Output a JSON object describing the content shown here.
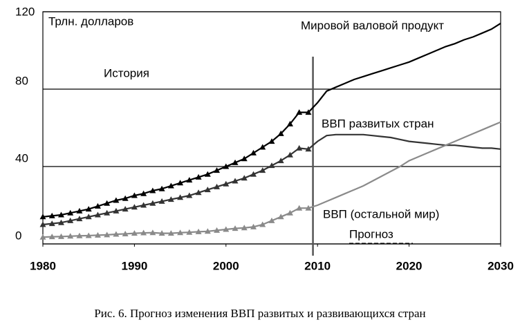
{
  "chart_data": {
    "type": "line",
    "y_label": "Трлн. долларов",
    "caption": "Рис. 6. Прогноз изменения ВВП развитых и развивающихся стран",
    "annotations": {
      "history": "История",
      "forecast": "Прогноз"
    },
    "x": [
      1980,
      1981,
      1982,
      1983,
      1984,
      1985,
      1986,
      1987,
      1988,
      1989,
      1990,
      1991,
      1992,
      1993,
      1994,
      1995,
      1996,
      1997,
      1998,
      1999,
      2000,
      2001,
      2002,
      2003,
      2004,
      2005,
      2006,
      2007,
      2008,
      2009,
      2010,
      2011,
      2012,
      2013,
      2014,
      2015,
      2016,
      2017,
      2018,
      2019,
      2020,
      2021,
      2022,
      2023,
      2024,
      2025,
      2026,
      2027,
      2028,
      2029,
      2030
    ],
    "series": [
      {
        "name": "Мировой валовой продукт",
        "color": "#000000",
        "values": [
          14,
          14.5,
          15,
          16,
          17,
          18,
          19.5,
          21,
          22.5,
          23.5,
          25,
          26,
          27.5,
          28.5,
          30,
          31.5,
          33,
          34.5,
          36,
          38,
          40,
          42,
          44,
          47,
          50,
          53,
          57,
          62,
          68,
          68,
          73,
          79,
          81,
          83,
          85,
          86.5,
          88,
          89.5,
          91,
          92.5,
          94,
          96,
          98,
          100,
          102,
          103.5,
          105.5,
          107,
          109,
          111,
          114
        ]
      },
      {
        "name": "ВВП развитых стран",
        "color": "#333333",
        "values": [
          10,
          10.5,
          11,
          12,
          13,
          14,
          15,
          16,
          17,
          18,
          19,
          20,
          21,
          22,
          23,
          24,
          25,
          26.5,
          28,
          29.5,
          31,
          32.5,
          34,
          36,
          38,
          40.5,
          43,
          46,
          49.5,
          49,
          53,
          56,
          56.5,
          56.5,
          56.5,
          56.5,
          56,
          55.5,
          55,
          54,
          53,
          52.5,
          52,
          51.5,
          51,
          51,
          50.5,
          50,
          49.5,
          49.5,
          49
        ]
      },
      {
        "name": "ВВП (остальной мир)",
        "color": "#8a8a8a",
        "values": [
          3.5,
          3.7,
          3.8,
          4,
          4.2,
          4.3,
          4.5,
          4.7,
          5,
          5.2,
          5.5,
          5.7,
          5.8,
          5.5,
          5.5,
          5.8,
          6,
          6.3,
          6.5,
          7,
          7.5,
          8,
          8.3,
          8.8,
          10,
          12,
          14,
          16,
          18.5,
          18.5,
          20,
          22,
          24,
          26,
          28,
          30,
          32.5,
          35,
          37.5,
          40,
          43,
          45,
          47,
          49,
          51,
          53,
          55,
          57,
          59,
          61,
          63
        ]
      }
    ],
    "xlim": [
      1980,
      2030
    ],
    "xticks": [
      1980,
      1990,
      2000,
      2010,
      2020,
      2030
    ],
    "ylim": [
      0,
      120
    ],
    "yticks": [
      0,
      40,
      80,
      120
    ],
    "grid": true,
    "marker": "triangle",
    "divider_x": 2009.5
  }
}
